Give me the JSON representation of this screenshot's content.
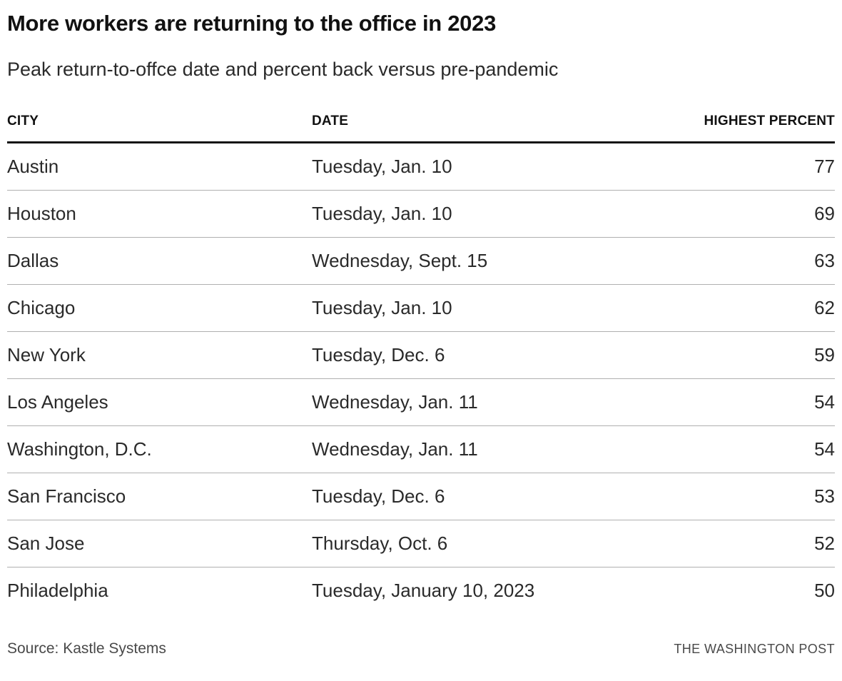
{
  "header": {
    "title": "More workers are returning to the office in 2023",
    "subtitle": "Peak return-to-offce date and percent back versus pre-pandemic"
  },
  "chart_data": {
    "type": "table",
    "title": "More workers are returning to the office in 2023",
    "subtitle": "Peak return-to-offce date and percent back versus pre-pandemic",
    "columns": [
      "CITY",
      "DATE",
      "HIGHEST PERCENT"
    ],
    "rows": [
      {
        "city": "Austin",
        "date": "Tuesday, Jan. 10",
        "percent": 77
      },
      {
        "city": "Houston",
        "date": "Tuesday, Jan. 10",
        "percent": 69
      },
      {
        "city": "Dallas",
        "date": "Wednesday, Sept. 15",
        "percent": 63
      },
      {
        "city": "Chicago",
        "date": "Tuesday, Jan. 10",
        "percent": 62
      },
      {
        "city": "New York",
        "date": "Tuesday, Dec. 6",
        "percent": 59
      },
      {
        "city": "Los Angeles",
        "date": "Wednesday, Jan. 11",
        "percent": 54
      },
      {
        "city": "Washington, D.C.",
        "date": "Wednesday, Jan. 11",
        "percent": 54
      },
      {
        "city": "San Francisco",
        "date": "Tuesday, Dec. 6",
        "percent": 53
      },
      {
        "city": "San Jose",
        "date": "Thursday, Oct. 6",
        "percent": 52
      },
      {
        "city": "Philadelphia",
        "date": "Tuesday, January 10, 2023",
        "percent": 50
      }
    ]
  },
  "footer": {
    "source": "Source: Kastle Systems",
    "credit": "THE WASHINGTON POST"
  },
  "colors": {
    "title_text": "#111111",
    "body_text": "#2a2a2a",
    "header_rule": "#111111",
    "row_rule": "#b0b0b0",
    "footer_text": "#494949",
    "background": "#ffffff"
  }
}
